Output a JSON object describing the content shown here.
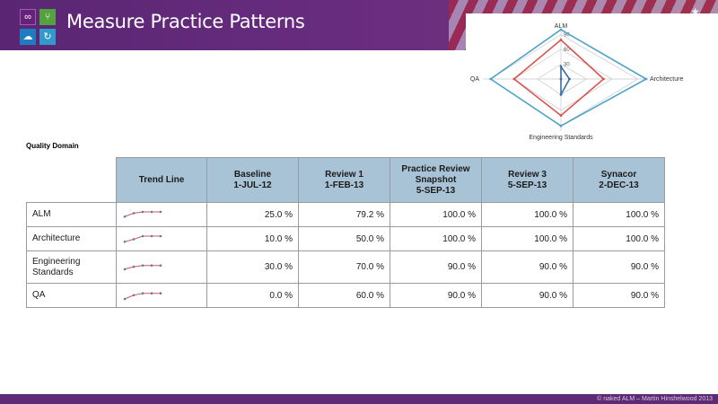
{
  "header": {
    "title": "Measure Practice Patterns",
    "logos": [
      "visual-studio-icon",
      "branch-icon",
      "cloud-icon",
      "sync-icon"
    ]
  },
  "section": {
    "label": "Quality Domain"
  },
  "table": {
    "columns": [
      "Trend Line",
      "Baseline\n1-JUL-12",
      "Review 1\n1-FEB-13",
      "Practice Review\nSnapshot\n5-SEP-13",
      "Review 3\n5-SEP-13",
      "Synacor\n2-DEC-13"
    ],
    "rows": [
      {
        "domain": "ALM",
        "values": [
          "25.0 %",
          "79.2 %",
          "100.0 %",
          "100.0 %",
          "100.0 %"
        ],
        "trend": [
          25,
          79.2,
          100,
          100,
          100
        ]
      },
      {
        "domain": "Architecture",
        "values": [
          "10.0 %",
          "50.0 %",
          "100.0 %",
          "100.0 %",
          "100.0 %"
        ],
        "trend": [
          10,
          50,
          100,
          100,
          100
        ]
      },
      {
        "domain": "Engineering\nStandards",
        "values": [
          "30.0 %",
          "70.0 %",
          "90.0 %",
          "90.0 %",
          "90.0 %"
        ],
        "trend": [
          30,
          70,
          90,
          90,
          90
        ]
      },
      {
        "domain": "QA",
        "values": [
          "0.0 %",
          "60.0 %",
          "90.0 %",
          "90.0 %",
          "90.0 %"
        ],
        "trend": [
          0,
          60,
          90,
          90,
          90
        ]
      }
    ]
  },
  "chart_data": {
    "type": "radar",
    "axes": [
      "ALM",
      "Architecture",
      "Engineering Standards",
      "QA"
    ],
    "ticks": [
      "30",
      "60",
      "90"
    ],
    "rmax": 100,
    "series": [
      {
        "color": "#4fa3c7",
        "values": [
          100,
          100,
          90,
          90
        ]
      },
      {
        "color": "#d9534f",
        "values": [
          79.2,
          50,
          70,
          60
        ]
      },
      {
        "color": "#3a6ea5",
        "values": [
          25,
          10,
          30,
          0
        ]
      }
    ],
    "colors": {
      "grid": "#c8c8c8",
      "sparkline": "#d9534f",
      "sparkline_dot": "#5a7fa8"
    }
  },
  "footer": {
    "copyright": "© naked ALM – Martin Hinshelwood 2013"
  }
}
